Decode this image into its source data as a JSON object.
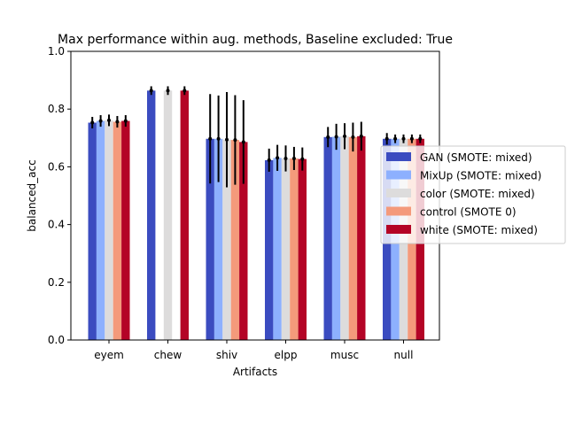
{
  "chart_data": {
    "type": "bar",
    "title": "Max performance within aug. methods, Baseline excluded: True",
    "xlabel": "Artifacts",
    "ylabel": "balanced_acc",
    "ylim": [
      0,
      1.0
    ],
    "yticks": [
      "0.0",
      "0.2",
      "0.4",
      "0.6",
      "0.8",
      "1.0"
    ],
    "grid": false,
    "legend_position": "right",
    "categories": [
      "eyem",
      "chew",
      "shiv",
      "elpp",
      "musc",
      "null"
    ],
    "series": [
      {
        "name": "GAN (SMOTE: mixed)",
        "color": "#3b4cc0",
        "values": [
          0.753,
          0.864,
          0.697,
          0.623,
          0.703,
          0.697
        ],
        "errors": [
          0.02,
          0.015,
          0.155,
          0.04,
          0.035,
          0.02
        ]
      },
      {
        "name": "MixUp (SMOTE: mixed)",
        "color": "#8db0fe",
        "values": [
          0.759,
          null,
          0.697,
          0.631,
          0.704,
          0.697
        ],
        "errors": [
          0.02,
          null,
          0.15,
          0.045,
          0.045,
          0.015
        ]
      },
      {
        "name": "color (SMOTE: mixed)",
        "color": "#dddcdc",
        "values": [
          0.761,
          0.864,
          0.694,
          0.629,
          0.706,
          0.697
        ],
        "errors": [
          0.02,
          0.015,
          0.165,
          0.045,
          0.045,
          0.015
        ]
      },
      {
        "name": "control (SMOTE 0)",
        "color": "#f49a7b",
        "values": [
          0.756,
          null,
          0.693,
          0.629,
          0.703,
          0.697
        ],
        "errors": [
          0.02,
          null,
          0.155,
          0.04,
          0.05,
          0.015
        ]
      },
      {
        "name": "white (SMOTE: mixed)",
        "color": "#b40426",
        "values": [
          0.759,
          0.864,
          0.686,
          0.627,
          0.706,
          0.697
        ],
        "errors": [
          0.02,
          0.015,
          0.145,
          0.04,
          0.05,
          0.015
        ]
      }
    ]
  }
}
